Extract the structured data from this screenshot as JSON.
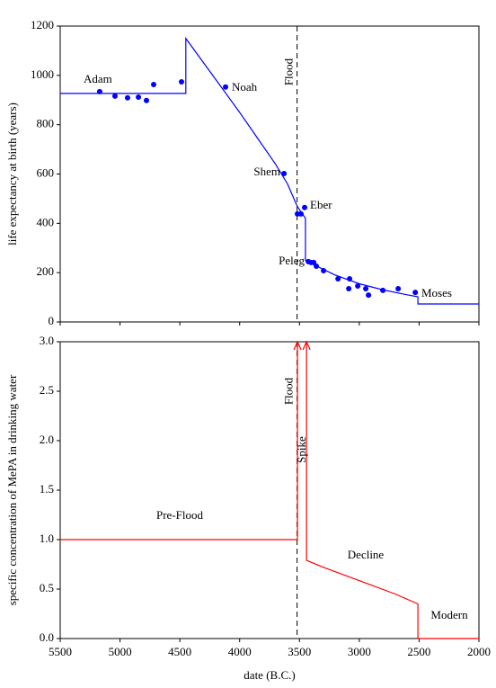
{
  "chart_data": [
    {
      "type": "scatter",
      "ylabel": "life expectancy at birth (years)",
      "xlim": [
        5500,
        2000
      ],
      "ylim": [
        0,
        1200
      ],
      "yticks": [
        0,
        200,
        400,
        600,
        800,
        1000,
        1200
      ],
      "points": {
        "color": "#0000ff",
        "x": [
          5170,
          5042,
          4937,
          4846,
          4779,
          4719,
          4486,
          4118,
          3629,
          3517,
          3487,
          3457,
          3426,
          3404,
          3381,
          3359,
          3299,
          3178,
          3081,
          3088,
          3013,
          2946,
          2923,
          2803,
          2675,
          2532
        ],
        "values": [
          934,
          916,
          909,
          912,
          898,
          963,
          974,
          953,
          602,
          438,
          438,
          464,
          245,
          241,
          241,
          226,
          208,
          175,
          175,
          135,
          146,
          135,
          109,
          128,
          135,
          120
        ]
      },
      "model": {
        "color": "#0000ff",
        "x": [
          5500,
          4450,
          4450,
          4300,
          4150,
          4000,
          3850,
          3700,
          3600,
          3520,
          3450,
          3450,
          3350,
          3200,
          3000,
          2800,
          2600,
          2510,
          2510,
          2000
        ],
        "values": [
          927,
          927,
          1150,
          1050,
          950,
          850,
          745,
          640,
          560,
          470,
          420,
          250,
          225,
          190,
          155,
          130,
          110,
          102,
          73,
          73
        ]
      },
      "vline": {
        "x": 3520,
        "label": "Flood"
      },
      "annotations": [
        "Adam",
        "Noah",
        "Shem",
        "Eber",
        "Peleg",
        "Moses"
      ]
    },
    {
      "type": "line",
      "ylabel": "specific concentration of MePA in drinking water",
      "xlabel": "date (B.C.)",
      "xlim": [
        5500,
        2000
      ],
      "ylim": [
        0,
        3
      ],
      "xticks": [
        5500,
        5000,
        4500,
        4000,
        3500,
        3000,
        2500,
        2000
      ],
      "yticks": [
        {
          "value": 0,
          "label": "0.0"
        },
        {
          "value": 0.5,
          "label": "0.5"
        },
        {
          "value": 1,
          "label": "1.0"
        },
        {
          "value": 1.5,
          "label": "1.5"
        },
        {
          "value": 2,
          "label": "2.0"
        },
        {
          "value": 2.5,
          "label": "2.5"
        },
        {
          "value": 3,
          "label": "3.0"
        }
      ],
      "line": {
        "color": "#ff0000",
        "x": [
          5500,
          3517,
          3517,
          3517,
          3441,
          3441,
          3300,
          3100,
          2900,
          2700,
          2510,
          2510,
          2000
        ],
        "values": [
          1,
          1,
          3,
          null,
          3,
          0.79,
          0.72,
          0.63,
          0.54,
          0.45,
          0.35,
          0,
          0
        ]
      },
      "vline": {
        "x": 3520,
        "label": "Flood"
      },
      "annotations": [
        "Pre-Flood",
        "Spike",
        "Decline",
        "Modern"
      ]
    }
  ]
}
